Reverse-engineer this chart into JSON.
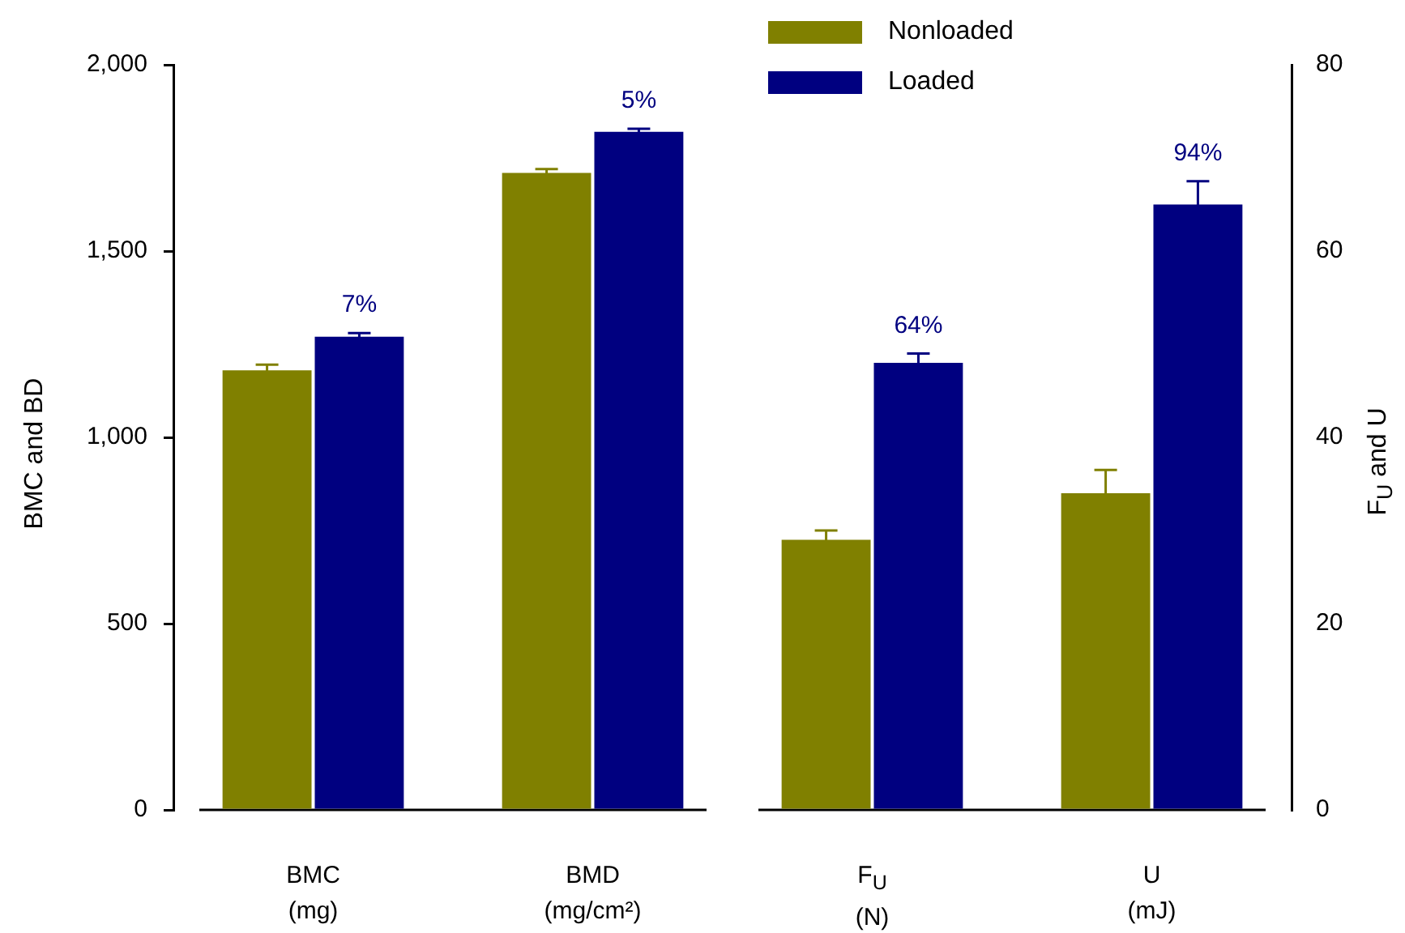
{
  "chart_data": {
    "type": "bar",
    "categories": [
      "BMC\n(mg)",
      "BMD\n(mg/cm²)",
      "F$_{U}$\n(N)",
      "U\n(mJ)"
    ],
    "series": [
      {
        "name": "Nonloaded",
        "color": "#808000",
        "values": [
          1180,
          1710,
          null,
          null
        ],
        "errors": [
          15,
          10,
          null,
          null
        ]
      },
      {
        "name": "Loaded",
        "color": "#000080",
        "values": [
          1270,
          1820,
          null,
          null
        ],
        "errors": [
          10,
          8,
          null,
          null
        ]
      },
      {
        "color": "#808000",
        "axis": "y2",
        "values": [
          null,
          null,
          29,
          34
        ],
        "errors": [
          null,
          null,
          1,
          2.5
        ]
      },
      {
        "color": "#000080",
        "axis": "y2",
        "values": [
          null,
          null,
          48,
          65
        ],
        "errors": [
          null,
          null,
          1,
          2.5
        ]
      }
    ],
    "annotations": [
      {
        "text": "7%",
        "x": "BMC\n(mg)",
        "y": 1270
      },
      {
        "text": "5%",
        "x": "BMD\n(mg/cm²)",
        "y": 1820
      },
      {
        "text": "64%",
        "x": "F$_{U}$\n(N)",
        "y": 1200
      },
      {
        "text": "94%",
        "x": "U\n(mJ)",
        "y": 1625
      }
    ],
    "ylim": [
      0,
      2000
    ],
    "yticks": [
      0,
      500,
      {
        "value": 1000,
        "label": "1,000"
      },
      {
        "value": 1500,
        "label": "1,500"
      },
      {
        "value": 2000,
        "label": "2,000"
      }
    ],
    "y2lim": [
      0,
      80
    ],
    "y2ticks": [
      0,
      20,
      40,
      60,
      80
    ],
    "ylabel": "BMC and BD",
    "y2label": "F$_{U}$ and U",
    "legend": "top"
  }
}
